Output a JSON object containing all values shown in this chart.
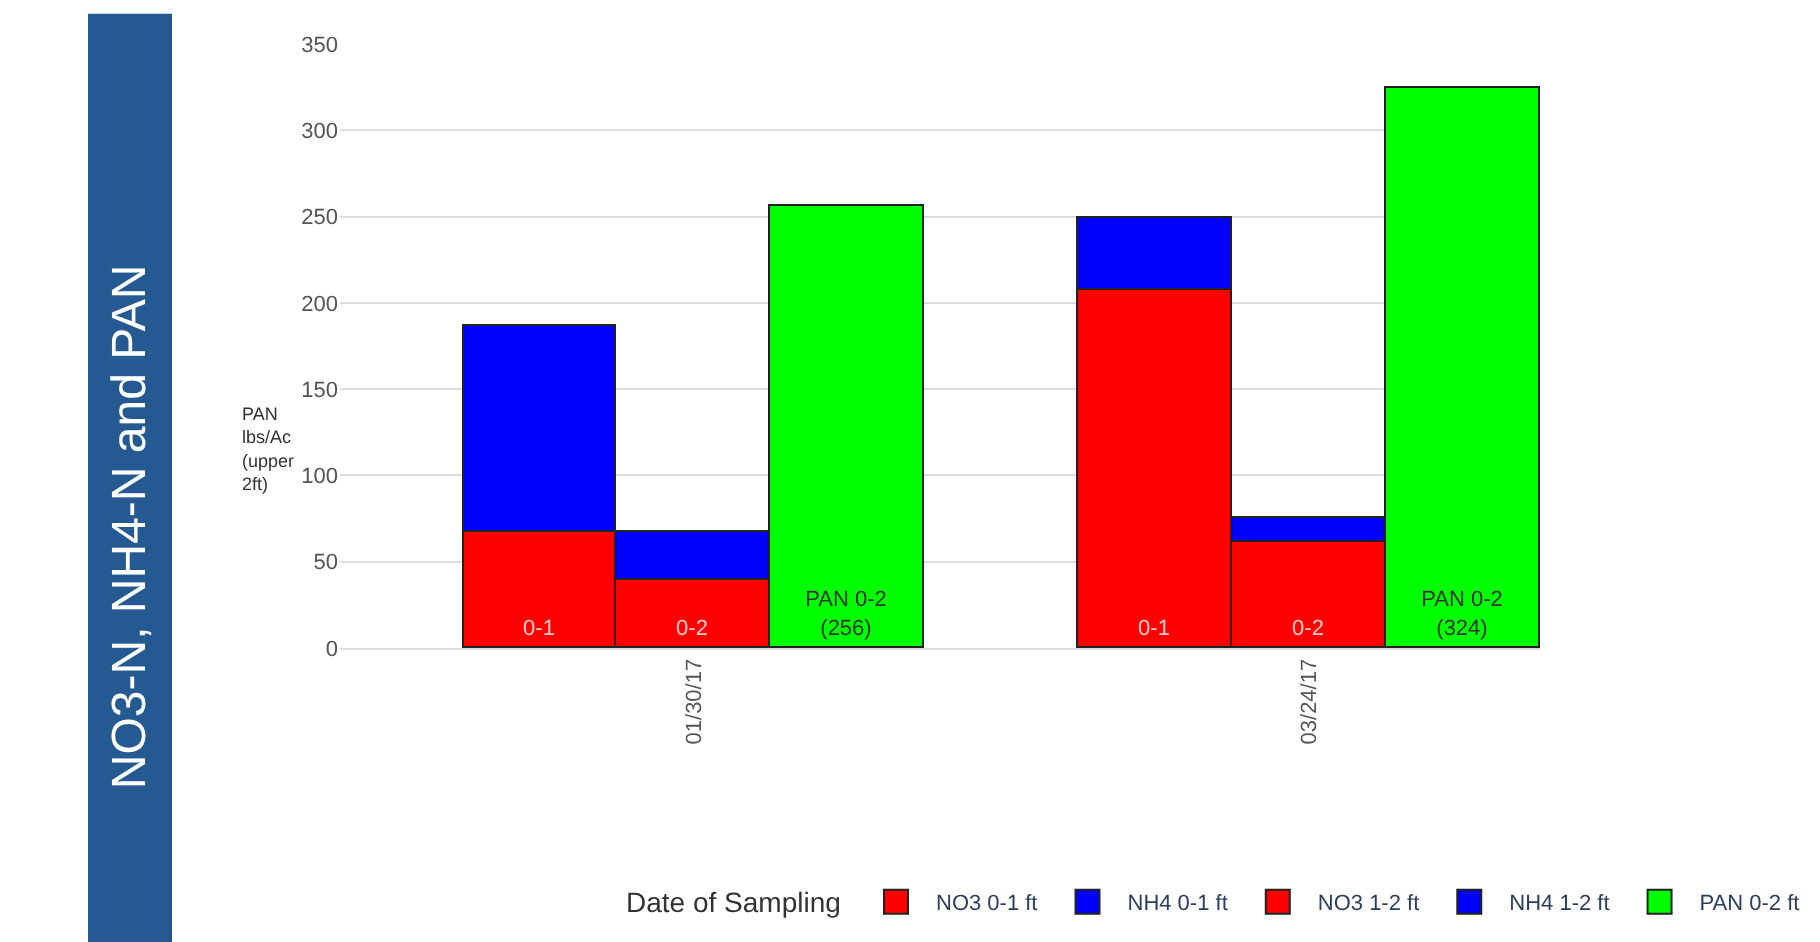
{
  "chart_data": {
    "type": "bar",
    "title": "NO3-N, NH4-N and PAN",
    "annotations": [
      "Date of Sampling"
    ],
    "ylabel": "PAN\nlbs/Ac\n(upper\n2ft)",
    "categories": [
      null,
      "01/30/17",
      null,
      null,
      null,
      "03/24/17",
      null
    ],
    "stacked": true,
    "series": [
      {
        "name": "NO3 0-1 ft",
        "color": "#ff0000",
        "values": [
          67,
          null,
          null,
          null,
          208,
          null,
          null
        ],
        "value_labels": [
          "0-1",
          null,
          null,
          null,
          "0-1",
          null,
          null
        ]
      },
      {
        "name": "NH4 0-1 ft",
        "color": "#0000ff",
        "values": [
          120,
          null,
          null,
          null,
          41,
          null,
          null
        ]
      },
      {
        "name": "NO3 1-2 ft",
        "color": "#ff0000",
        "values": [
          null,
          39,
          null,
          null,
          null,
          62,
          null
        ],
        "value_labels": [
          null,
          "0-2",
          null,
          null,
          null,
          "0-2",
          null
        ]
      },
      {
        "name": "NH4 1-2 ft",
        "color": "#0000ff",
        "values": [
          null,
          28,
          null,
          null,
          null,
          13,
          null
        ]
      },
      {
        "name": "PAN 0-2 ft",
        "color": "#00ff00",
        "values": [
          null,
          null,
          256,
          null,
          null,
          null,
          324
        ],
        "value_labels": [
          null,
          null,
          "PAN 0-2\n(256)",
          null,
          null,
          null,
          "PAN 0-2\n(324)"
        ]
      }
    ],
    "ylim": [
      0,
      350
    ],
    "yticks": [
      0,
      50,
      100,
      150,
      200,
      250,
      300,
      350
    ],
    "grid": "y",
    "legend": "bottom"
  }
}
